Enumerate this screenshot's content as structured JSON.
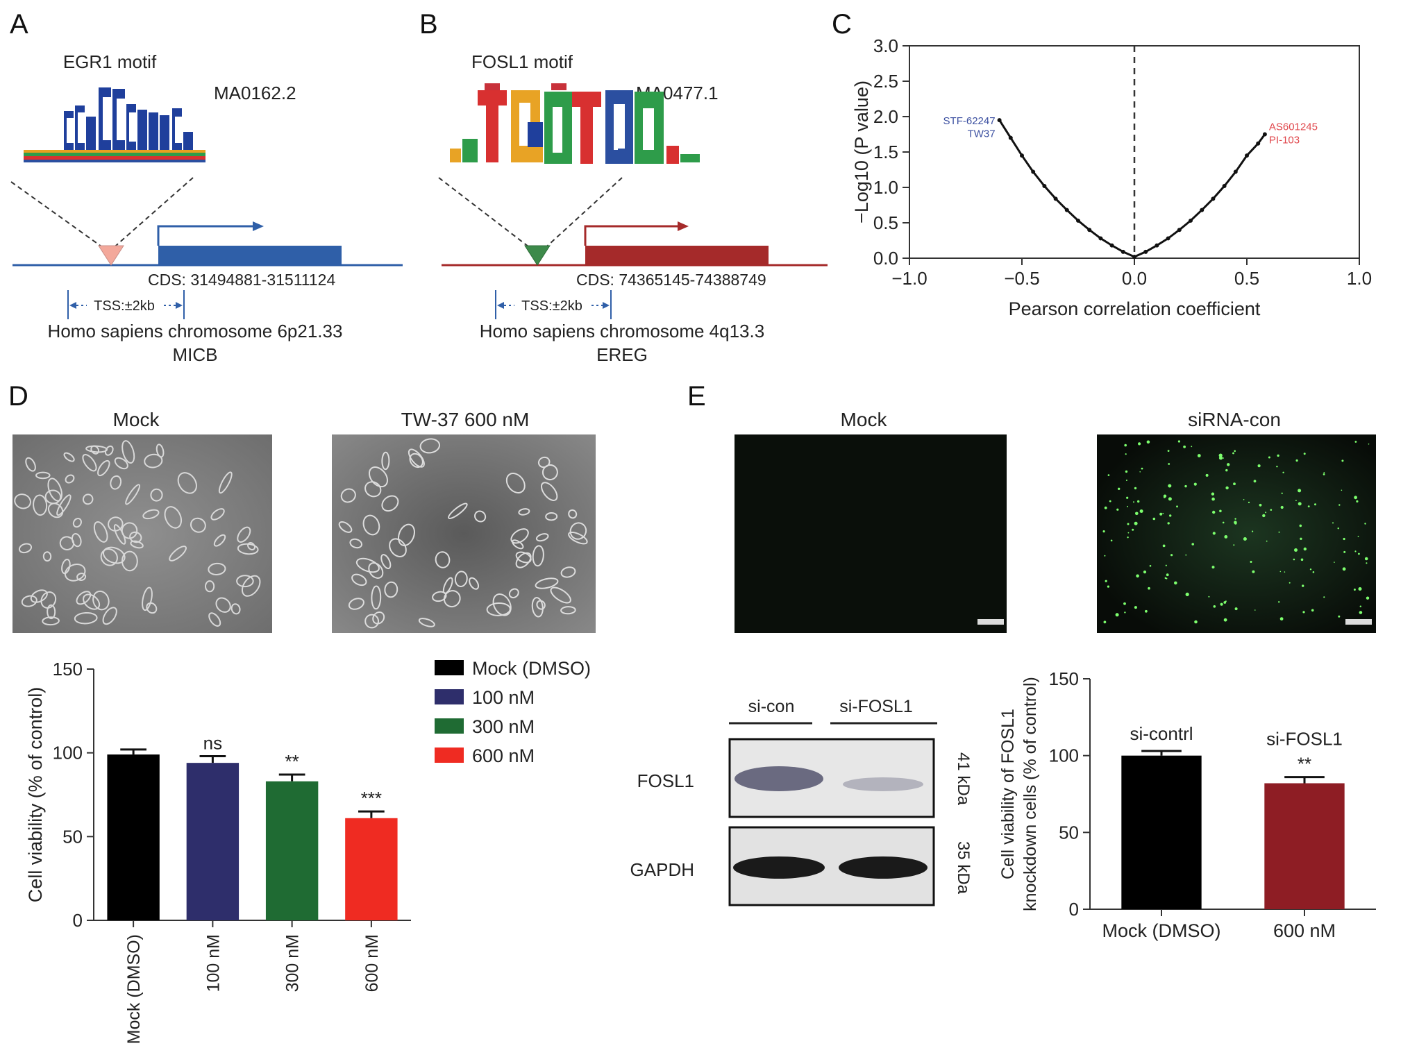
{
  "panels": {
    "a": {
      "letter": "A",
      "motif_title": "EGR1 motif",
      "motif_id": "MA0162.2",
      "cds": "CDS: 31494881-31511124",
      "tss": "TSS:±2kb",
      "chromosome": "Homo sapiens chromosome 6p21.33",
      "gene": "MICB",
      "color": "#2f5fa8",
      "triangle_color": "#f3a89b"
    },
    "b": {
      "letter": "B",
      "motif_title": "FOSL1 motif",
      "motif_id": "MA0477.1",
      "cds": "CDS: 74365145-74388749",
      "tss": "TSS:±2kb",
      "chromosome": "Homo sapiens chromosome 4q13.3",
      "gene": "EREG",
      "color": "#a52a2a",
      "triangle_color": "#3d8a4a"
    },
    "c": {
      "letter": "C"
    },
    "d": {
      "letter": "D",
      "image_titles": [
        "Mock",
        "TW-37 600 nM"
      ]
    },
    "e": {
      "letter": "E",
      "image_titles": [
        "Mock",
        "siRNA-con"
      ],
      "blot": {
        "lanes": [
          "si-con",
          "si-FOSL1"
        ],
        "rows": [
          {
            "label": "FOSL1",
            "kda": "41 kDa"
          },
          {
            "label": "GAPDH",
            "kda": "35 kDa"
          }
        ]
      }
    }
  },
  "chart_data": [
    {
      "panel": "C",
      "type": "scatter",
      "xlabel": "Pearson correlation coefficient",
      "ylabel": "−Log10 (P value)",
      "xlim": [
        -1.0,
        1.0
      ],
      "ylim": [
        0.0,
        3.0
      ],
      "xticks": [
        "−1.0",
        "−0.5",
        "0.0",
        "0.5",
        "1.0"
      ],
      "yticks": [
        "0.0",
        "0.5",
        "1.0",
        "1.5",
        "2.0",
        "2.5",
        "3.0"
      ],
      "reference_line_x": 0.0,
      "x": [
        -0.6,
        -0.55,
        -0.5,
        -0.45,
        -0.4,
        -0.35,
        -0.3,
        -0.25,
        -0.2,
        -0.15,
        -0.1,
        -0.05,
        0.0,
        0.05,
        0.1,
        0.15,
        0.2,
        0.25,
        0.3,
        0.35,
        0.4,
        0.45,
        0.5,
        0.55,
        0.58
      ],
      "y": [
        1.95,
        1.7,
        1.45,
        1.22,
        1.02,
        0.84,
        0.68,
        0.53,
        0.4,
        0.28,
        0.18,
        0.09,
        0.02,
        0.09,
        0.18,
        0.28,
        0.4,
        0.53,
        0.68,
        0.84,
        1.02,
        1.22,
        1.45,
        1.62,
        1.75
      ],
      "annotations": [
        {
          "text": "STF-62247",
          "x": -0.6,
          "y": 1.95,
          "color": "#3b4fa0"
        },
        {
          "text": "TW37",
          "x": -0.6,
          "y": 1.77,
          "color": "#3b4fa0"
        },
        {
          "text": "AS601245",
          "x": 0.58,
          "y": 1.87,
          "color": "#e0474c"
        },
        {
          "text": "PI-103",
          "x": 0.58,
          "y": 1.68,
          "color": "#e0474c"
        }
      ]
    },
    {
      "panel": "D",
      "type": "bar",
      "ylabel": "Cell viability (% of control)",
      "ylim": [
        0,
        150
      ],
      "yticks": [
        "0",
        "50",
        "100",
        "150"
      ],
      "categories": [
        "Mock (DMSO)",
        "100 nM",
        "300 nM",
        "600 nM"
      ],
      "values": [
        99,
        94,
        83,
        61
      ],
      "errors": [
        3,
        4,
        4,
        4
      ],
      "colors": [
        "#000000",
        "#2e2e6b",
        "#1f6b33",
        "#ef2b22"
      ],
      "significance": [
        "",
        "ns",
        "**",
        "***"
      ],
      "legend": [
        "Mock (DMSO)",
        "100 nM",
        "300 nM",
        "600 nM"
      ]
    },
    {
      "panel": "E",
      "type": "bar",
      "ylabel": "Cell viability of FOSL1 knockdown cells (% of control)",
      "ylabel_lines": [
        "Cell viability of FOSL1",
        "knockdown cells (% of control)"
      ],
      "ylim": [
        0,
        150
      ],
      "yticks": [
        "0",
        "50",
        "100",
        "150"
      ],
      "categories": [
        "Mock (DMSO)",
        "600 nM"
      ],
      "values": [
        100,
        82
      ],
      "errors": [
        3,
        4
      ],
      "colors": [
        "#000000",
        "#8e1d24"
      ],
      "bar_labels": [
        "si-contrl",
        "si-FOSL1"
      ],
      "significance": [
        "",
        "**"
      ]
    }
  ]
}
